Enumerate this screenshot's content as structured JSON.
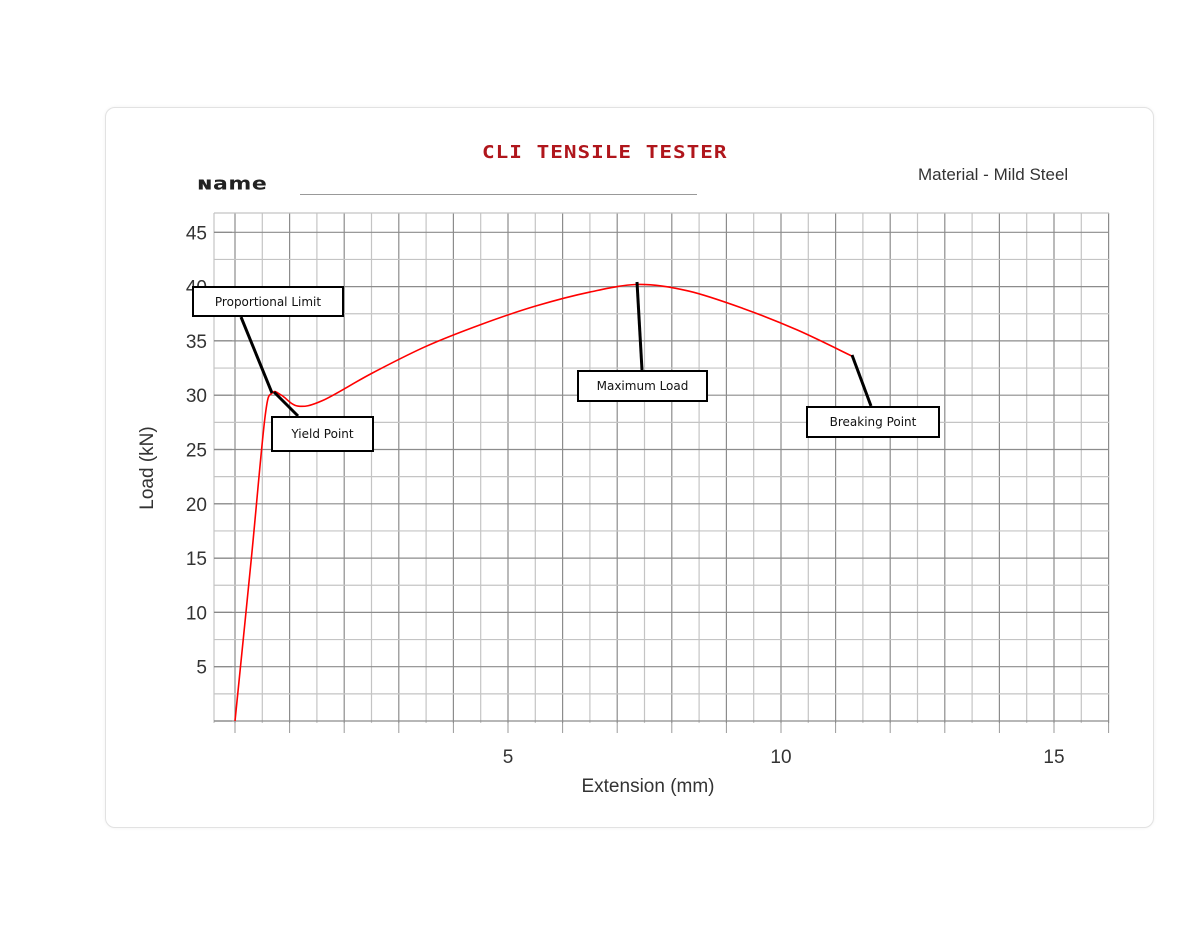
{
  "header": {
    "title": "CLI TENSILE TESTER",
    "name_label": "Name",
    "material": "Material - Mild Steel"
  },
  "colors": {
    "curve": "#ff0000",
    "title": "#b0161c",
    "grid": "#a0a0a0"
  },
  "annotations": {
    "proportional_limit": "Proportional Limit",
    "yield_point": "Yield Point",
    "maximum_load": "Maximum Load",
    "breaking_point": "Breaking Point"
  },
  "axes": {
    "xlabel": "Extension (mm)",
    "ylabel": "Load (kN)",
    "xticks": [
      "5",
      "10",
      "15"
    ],
    "yticks": [
      "45",
      "40",
      "35",
      "30",
      "25",
      "20",
      "15",
      "10",
      "5"
    ]
  },
  "chart_data": {
    "type": "line",
    "title": "CLI TENSILE TESTER",
    "subtitle": "Material - Mild Steel",
    "xlabel": "Extension (mm)",
    "ylabel": "Load (kN)",
    "xlim": [
      0,
      16
    ],
    "ylim": [
      0,
      47
    ],
    "grid": true,
    "series": [
      {
        "name": "Mild Steel",
        "x": [
          0,
          0.3,
          0.55,
          0.68,
          0.85,
          1.15,
          1.6,
          2.5,
          3.5,
          4.5,
          5.5,
          6.5,
          7.4,
          8.3,
          9.3,
          10.3,
          11.3
        ],
        "y": [
          0,
          15,
          28,
          30.2,
          30,
          29,
          29.5,
          32,
          34.5,
          36.5,
          38.2,
          39.5,
          40.2,
          39.6,
          38,
          36,
          33.6
        ]
      }
    ],
    "annotations": [
      {
        "label": "Proportional Limit",
        "x": 0.68,
        "y": 30.2
      },
      {
        "label": "Yield Point",
        "x": 1.15,
        "y": 29
      },
      {
        "label": "Maximum Load",
        "x": 7.4,
        "y": 40.2
      },
      {
        "label": "Breaking Point",
        "x": 11.3,
        "y": 33.6
      }
    ],
    "xticks": [
      5,
      10,
      15
    ],
    "yticks": [
      5,
      10,
      15,
      20,
      25,
      30,
      35,
      40,
      45
    ]
  }
}
